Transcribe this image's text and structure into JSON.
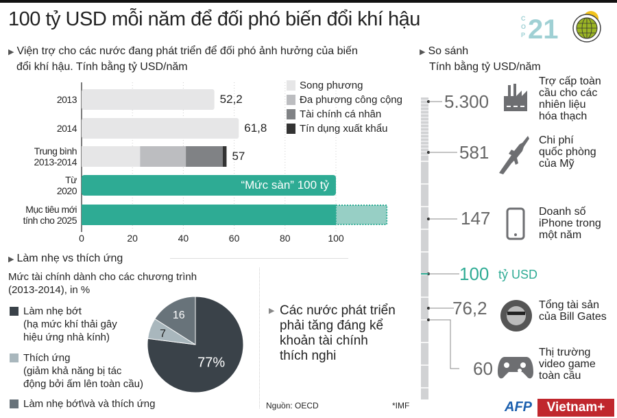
{
  "title": "100 tỷ USD mỗi năm để đối phó biến đổi khí hậu",
  "logo": {
    "text": "COP21",
    "cop": "COP",
    "num": "21"
  },
  "left": {
    "heading": "Viện trợ cho các nước đang phát triển để đối phó ảnh hưởng của biến",
    "heading2": "đổi khí hậu. Tính bằng tỷ USD/năm"
  },
  "chart_data": [
    {
      "type": "bar",
      "stacked": true,
      "orientation": "horizontal",
      "categories": [
        "2013",
        "2014",
        "Trung bình 2013-2014",
        "Từ 2020",
        "Mục tiêu mới tính cho 2025"
      ],
      "category_lines": [
        [
          "2013"
        ],
        [
          "2014"
        ],
        [
          "Trung bình",
          "2013-2014"
        ],
        [
          "Từ",
          "2020"
        ],
        [
          "Mục tiêu mới",
          "tính cho 2025"
        ]
      ],
      "series": [
        {
          "name": "Song phương",
          "color": "#e6e6e7",
          "values": [
            52.2,
            61.8,
            23,
            null,
            null
          ]
        },
        {
          "name": "Đa phương công cộng",
          "color": "#bcbdc0",
          "values": [
            null,
            null,
            18,
            null,
            null
          ]
        },
        {
          "name": "Tài chính cá nhân",
          "color": "#808285",
          "values": [
            null,
            null,
            14.5,
            null,
            null
          ]
        },
        {
          "name": "Tín dụng xuất khẩu",
          "color": "#333333",
          "values": [
            null,
            null,
            1.5,
            null,
            null
          ]
        }
      ],
      "target": {
        "color": "#2eab94",
        "values": [
          null,
          null,
          null,
          100,
          100
        ],
        "extension_color": "#97cfc5",
        "extension_values": [
          null,
          null,
          null,
          null,
          20
        ]
      },
      "data_labels": [
        "52,2",
        "61,8",
        "57",
        "“Mức sàn” 100 tỷ",
        ""
      ],
      "xlim": [
        0,
        125
      ],
      "xticks": [
        0,
        20,
        40,
        60,
        80,
        100
      ],
      "grid": true,
      "legend": "top-right"
    },
    {
      "type": "pie",
      "title": "Mức tài chính dành cho các chương trình (2013-2014), in %",
      "slices": [
        {
          "name": "Làm nhẹ bớt",
          "desc": "(hạ mức khí thải gây hiệu ứng nhà kính)",
          "value": 77,
          "label": "77%",
          "color": "#3a4249"
        },
        {
          "name": "Thích ứng",
          "desc": "(giảm khả năng bị tác động bởi ấm lên toàn cầu)",
          "value": 7,
          "label": "7",
          "color": "#a9b7bd"
        },
        {
          "name": "Làm nhẹ bớt\\và và thích ứng",
          "desc": "",
          "value": 16,
          "label": "16",
          "color": "#68737a"
        }
      ]
    }
  ],
  "pie_section": {
    "heading": "Làm nhẹ vs thích ứng",
    "subtitle1": "Mức tài chính dành cho các chương trình",
    "subtitle2": "(2013-2014), in %",
    "legend": [
      [
        "Làm nhẹ bớt",
        "(hạ mức khí thải gây",
        "hiệu ứng nhà kính)"
      ],
      [
        "Thích ứng",
        "(giảm khả năng bị tác",
        "động bởi ấm lên toàn cầu)"
      ],
      [
        "Làm nhẹ bớt\\và và thích ứng"
      ]
    ]
  },
  "callout": [
    "Các nước phát triển",
    "phải tăng đáng kể",
    "khoản tài chính",
    "thích nghi"
  ],
  "source": "Nguồn: OECD",
  "note": "*IMF",
  "compare": {
    "heading": "So sánh",
    "unit": "Tính bằng tỷ USD/năm",
    "items": [
      {
        "value": "5.300",
        "icon": "factory-icon",
        "lines": [
          "Trợ cấp toàn",
          "cầu cho các",
          "nhiên liệu",
          "hóa thạch"
        ]
      },
      {
        "value": "581",
        "icon": "rifle-icon",
        "lines": [
          "Chi phí",
          "quốc phòng",
          "của Mỹ"
        ]
      },
      {
        "value": "147",
        "icon": "iphone-icon",
        "lines": [
          "Doanh số",
          "iPhone trong",
          "một năm"
        ]
      },
      {
        "value": "100",
        "suffix": "tỷ USD",
        "lines": []
      },
      {
        "value": "76,2",
        "icon": "bill-gates-photo",
        "lines": [
          "Tổng tài sản",
          "của Bill Gates"
        ]
      },
      {
        "value": "60",
        "icon": "gamepad-icon",
        "lines": [
          "Thị trường",
          "video game",
          "toàn cầu"
        ]
      }
    ]
  },
  "colors": {
    "accent": "#2eab94",
    "brand_red": "#c0272d",
    "afp_blue": "#1b5fae",
    "logo_teal": "#9fd0d4",
    "logo_green": "#9bb524",
    "logo_yellow": "#f2c31c"
  },
  "credits": {
    "afp": "AFP",
    "vietnam": "Vietnam+"
  }
}
